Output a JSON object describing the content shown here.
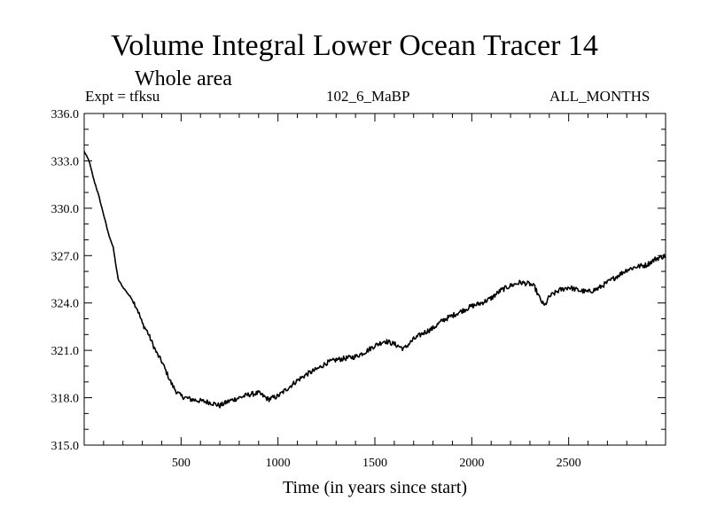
{
  "chart_data": {
    "type": "line",
    "title": "Volume Integral Lower Ocean Tracer 14",
    "subtitle": "Whole area",
    "experiment_label": "Expt = tfksu",
    "run_label": "102_6_MaBP",
    "period_label": "ALL_MONTHS",
    "xlabel": "Time (in years since start)",
    "ylabel": "",
    "xlim": [
      0,
      3000
    ],
    "ylim": [
      315.0,
      336.0
    ],
    "x_ticks": [
      500,
      1000,
      1500,
      2000,
      2500
    ],
    "x_tick_labels": [
      "500",
      "1000",
      "1500",
      "2000",
      "2500"
    ],
    "y_ticks": [
      315.0,
      318.0,
      321.0,
      324.0,
      327.0,
      330.0,
      333.0,
      336.0
    ],
    "y_tick_labels": [
      "315.0",
      "318.0",
      "321.0",
      "324.0",
      "327.0",
      "330.0",
      "333.0",
      "336.0"
    ],
    "grid": false,
    "series": [
      {
        "name": "Lower Ocean Tracer 14",
        "x": [
          0,
          25,
          50,
          75,
          100,
          125,
          150,
          175,
          200,
          225,
          250,
          275,
          300,
          325,
          350,
          375,
          400,
          425,
          450,
          475,
          500,
          550,
          600,
          650,
          700,
          750,
          800,
          850,
          900,
          950,
          1000,
          1050,
          1100,
          1150,
          1200,
          1250,
          1300,
          1350,
          1400,
          1450,
          1500,
          1550,
          1600,
          1650,
          1700,
          1750,
          1800,
          1850,
          1900,
          1950,
          2000,
          2050,
          2100,
          2150,
          2200,
          2250,
          2300,
          2325,
          2350,
          2375,
          2400,
          2450,
          2500,
          2550,
          2600,
          2650,
          2700,
          2750,
          2800,
          2850,
          2900,
          2950,
          3000
        ],
        "y": [
          333.6,
          333.0,
          331.8,
          330.8,
          329.6,
          328.4,
          327.5,
          325.5,
          325.0,
          324.6,
          324.2,
          323.6,
          322.7,
          322.2,
          321.5,
          320.8,
          320.3,
          319.6,
          318.9,
          318.4,
          318.1,
          317.9,
          317.8,
          317.7,
          317.5,
          317.8,
          318.0,
          318.2,
          318.3,
          317.9,
          318.1,
          318.6,
          319.1,
          319.5,
          319.8,
          320.2,
          320.4,
          320.5,
          320.6,
          320.9,
          321.3,
          321.6,
          321.4,
          321.1,
          321.7,
          322.1,
          322.4,
          322.9,
          323.2,
          323.5,
          323.8,
          324.0,
          324.3,
          324.8,
          325.1,
          325.3,
          325.2,
          325.0,
          324.3,
          323.8,
          324.4,
          324.8,
          325.0,
          324.8,
          324.7,
          324.9,
          325.3,
          325.7,
          326.1,
          326.3,
          326.4,
          326.8,
          327.0
        ]
      }
    ]
  }
}
